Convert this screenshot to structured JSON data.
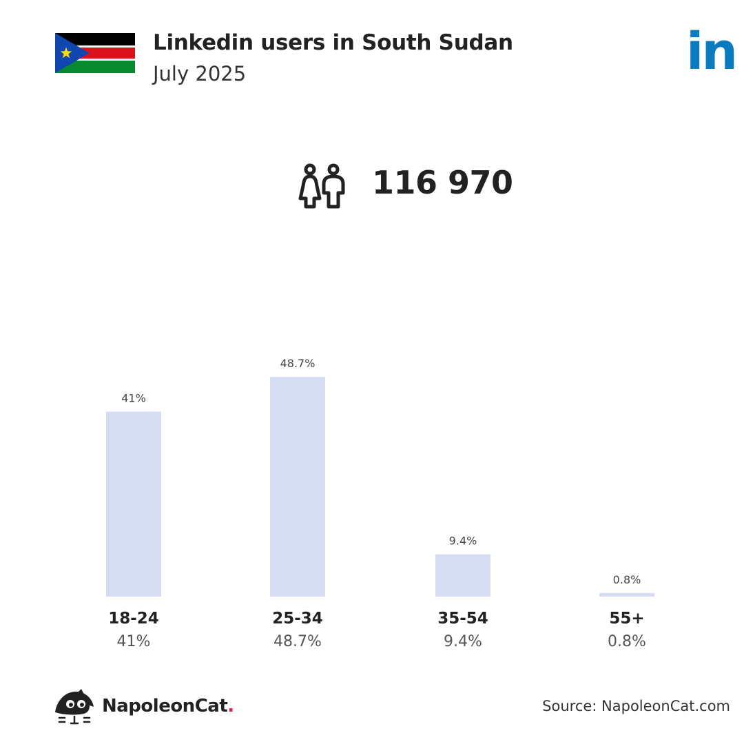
{
  "header": {
    "title": "Linkedin users in South Sudan",
    "subtitle": "July 2025",
    "logo_text": "in",
    "flag_icon": "south-sudan-flag-icon"
  },
  "summary": {
    "icon": "users-icon",
    "total": "116 970"
  },
  "colors": {
    "bar": "#D6DDF3",
    "linkedin_blue": "#0A7BBF",
    "brand_dot": "#E5213A",
    "text_dark": "#222222",
    "text_muted": "#555555"
  },
  "chart_data": {
    "type": "bar",
    "categories": [
      "18-24",
      "25-34",
      "35-54",
      "55+"
    ],
    "values": [
      41,
      48.7,
      9.4,
      0.8
    ],
    "value_labels": [
      "41%",
      "48.7%",
      "9.4%",
      "0.8%"
    ],
    "unit": "%",
    "ylim": [
      0,
      55
    ],
    "grid": false
  },
  "footer": {
    "brand_name": "NapoleonCat",
    "brand_dot": ".",
    "source": "Source: NapoleonCat.com"
  }
}
